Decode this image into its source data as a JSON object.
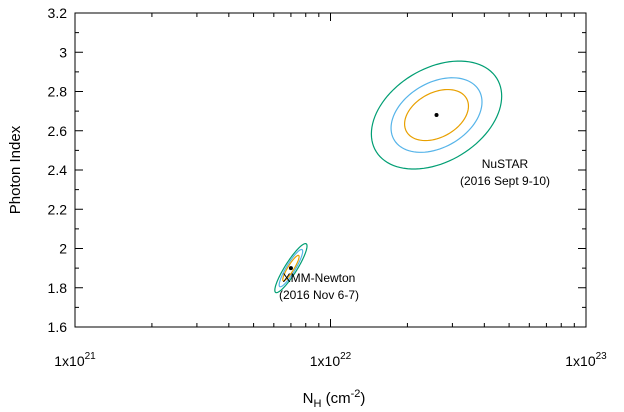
{
  "chart_data": {
    "type": "scatter",
    "title": "",
    "xlabel": {
      "main": "N",
      "sub": "H",
      "unit": " (cm",
      "sup": "-2",
      "close": ")"
    },
    "ylabel": "Photon Index",
    "xscale": "log",
    "xlim": [
      1e+21,
      1e+23
    ],
    "ylim": [
      1.6,
      3.2
    ],
    "x_ticks": [
      {
        "value": 1e+21,
        "base": "1x10",
        "exp": "21"
      },
      {
        "value": 1e+22,
        "base": "1x10",
        "exp": "22"
      },
      {
        "value": 1e+23,
        "base": "1x10",
        "exp": "23"
      }
    ],
    "y_ticks": [
      {
        "value": 1.6,
        "label": "1.6"
      },
      {
        "value": 1.8,
        "label": "1.8"
      },
      {
        "value": 2.0,
        "label": "2"
      },
      {
        "value": 2.2,
        "label": "2.2"
      },
      {
        "value": 2.4,
        "label": "2.4"
      },
      {
        "value": 2.6,
        "label": "2.6"
      },
      {
        "value": 2.8,
        "label": "2.8"
      },
      {
        "value": 3.0,
        "label": "3"
      },
      {
        "value": 3.2,
        "label": "3.2"
      }
    ],
    "grid": false,
    "colors": {
      "inner": "#e8a000",
      "middle": "#56b4e9",
      "outer": "#009e73",
      "point": "#000000"
    },
    "datasets": [
      {
        "point": {
          "nh": 2.6e+22,
          "gamma": 2.68
        },
        "contours": [
          {
            "level": "inner",
            "dlog_nh": 0.125,
            "dgamma": 0.13,
            "corr": 0.35
          },
          {
            "level": "middle",
            "dlog_nh": 0.178,
            "dgamma": 0.19,
            "corr": 0.35
          },
          {
            "level": "outer",
            "dlog_nh": 0.255,
            "dgamma": 0.275,
            "corr": 0.35
          }
        ],
        "label": [
          "NuSTAR",
          "(2016 Sept 9-10)"
        ]
      },
      {
        "point": {
          "nh": 7e+21,
          "gamma": 1.9
        },
        "contours": [
          {
            "level": "inner",
            "dlog_nh": 0.032,
            "dgamma": 0.065,
            "corr": 0.9
          },
          {
            "level": "middle",
            "dlog_nh": 0.046,
            "dgamma": 0.095,
            "corr": 0.9
          },
          {
            "level": "outer",
            "dlog_nh": 0.063,
            "dgamma": 0.125,
            "corr": 0.9
          }
        ],
        "label": [
          "XMM-Newton",
          "(2016 Nov 6-7)"
        ]
      }
    ]
  }
}
